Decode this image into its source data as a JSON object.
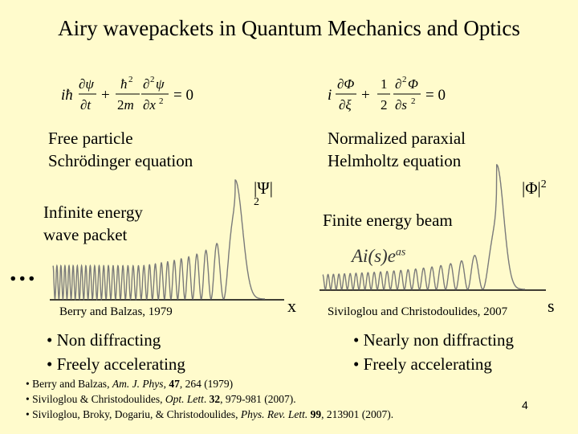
{
  "slide": {
    "title": "Airy wavepackets in Quantum Mechanics and Optics",
    "page_number": "4"
  },
  "left_panel": {
    "equation_label_1": "Free particle",
    "equation_label_2": "Schrödinger equation",
    "wave_label_1": "Infinite energy",
    "wave_label_2": "wave packet",
    "ellipsis": "...",
    "axis_label": "x",
    "y_label": "|Ψ|",
    "y_label_exp": "2",
    "citation": "Berry and Balzas, 1979",
    "bullets": [
      "• Non diffracting",
      "• Freely accelerating"
    ]
  },
  "right_panel": {
    "equation_label_1": "Normalized paraxial",
    "equation_label_2": "Helmholtz equation",
    "beam_label": "Finite energy beam",
    "formula_main": "Ai(s)e",
    "formula_exp": "as",
    "axis_label": "s",
    "y_label": "|Φ|",
    "y_label_exp": "2",
    "citation": "Siviloglou and Christodoulides, 2007",
    "bullets": [
      "• Nearly non diffracting",
      "• Freely accelerating"
    ]
  },
  "references": [
    {
      "pre": "• Berry and Balzas, ",
      "journal": "Am. J. Phys",
      "mid": ", ",
      "vol": "47",
      "post": ", 264 (1979)"
    },
    {
      "pre": "• Siviloglou & Christodoulides, ",
      "journal": "Opt. Lett",
      "mid": ". ",
      "vol": "32",
      "post": ", 979-981 (2007)."
    },
    {
      "pre": "• Siviloglou, Broky, Dogariu, & Christodoulides, ",
      "journal": "Phys. Rev. Lett.",
      "mid": " ",
      "vol": "99",
      "post": ", 213901 (2007)."
    }
  ],
  "colors": {
    "background": "#fffbcc",
    "curve": "#7a7a7a",
    "axis": "#000000"
  }
}
